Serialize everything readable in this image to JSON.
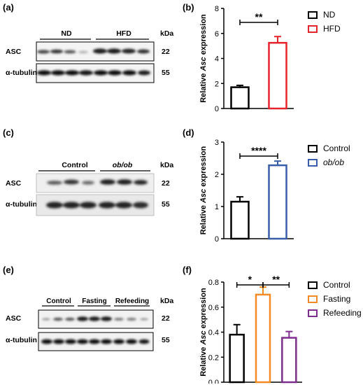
{
  "colors": {
    "nd": "#000000",
    "hfd": "#e5242b",
    "control": "#000000",
    "obob": "#3a5daa",
    "fasting": "#f08a24",
    "refeeding": "#7e2f8e"
  },
  "panels": {
    "a": {
      "letter": "(a)",
      "group_labels": [
        "ND",
        "HFD"
      ],
      "unit": "kDa",
      "rows": [
        {
          "label": "ASC",
          "kda": "22"
        },
        {
          "label": "α-tubulin",
          "kda": "55"
        }
      ]
    },
    "c": {
      "letter": "(c)",
      "group_labels": [
        "Control",
        "ob/ob"
      ],
      "unit": "kDa",
      "rows": [
        {
          "label": "ASC",
          "kda": "22"
        },
        {
          "label": "α-tubulin",
          "kda": "55"
        }
      ]
    },
    "e": {
      "letter": "(e)",
      "group_labels": [
        "Control",
        "Fasting",
        "Refeeding"
      ],
      "unit": "kDa",
      "rows": [
        {
          "label": "ASC",
          "kda": "22"
        },
        {
          "label": "α-tubulin",
          "kda": "55"
        }
      ]
    },
    "b": {
      "letter": "(b)"
    },
    "d": {
      "letter": "(d)"
    },
    "f": {
      "letter": "(f)"
    }
  },
  "chart_data": [
    {
      "type": "bar",
      "panel": "b",
      "categories": [
        "ND",
        "HFD"
      ],
      "values": [
        1.7,
        5.25
      ],
      "errors": [
        0.15,
        0.5
      ],
      "ylim": [
        0,
        8
      ],
      "yticks": [
        "0",
        "2",
        "4",
        "6",
        "8"
      ],
      "ylabel_prefix": "Relative ",
      "ylabel_gene": "Asc",
      "ylabel_suffix": " expression",
      "significance": [
        {
          "from": 0,
          "to": 1,
          "label": "**"
        }
      ],
      "legend": [
        "ND",
        "HFD"
      ]
    },
    {
      "type": "bar",
      "panel": "d",
      "categories": [
        "Control",
        "ob/ob"
      ],
      "values": [
        1.15,
        2.28
      ],
      "errors": [
        0.15,
        0.13
      ],
      "ylim": [
        0,
        3
      ],
      "yticks": [
        "0",
        "1",
        "2",
        "3"
      ],
      "ylabel_prefix": "Relative ",
      "ylabel_gene": "Asc",
      "ylabel_suffix": " expression",
      "significance": [
        {
          "from": 0,
          "to": 1,
          "label": "****"
        }
      ],
      "legend": [
        "Control",
        "ob/ob"
      ]
    },
    {
      "type": "bar",
      "panel": "f",
      "categories": [
        "Control",
        "Fasting",
        "Refeeding"
      ],
      "values": [
        0.38,
        0.7,
        0.355
      ],
      "errors": [
        0.08,
        0.06,
        0.05
      ],
      "ylim": [
        0,
        0.8
      ],
      "yticks": [
        "0.0",
        "0.2",
        "0.4",
        "0.6",
        "0.8"
      ],
      "ylabel_prefix": "Relative ",
      "ylabel_gene": "Asc",
      "ylabel_suffix": " expression",
      "significance": [
        {
          "from": 0,
          "to": 1,
          "label": "*"
        },
        {
          "from": 1,
          "to": 2,
          "label": "**"
        }
      ],
      "legend": [
        "Control",
        "Fasting",
        "Refeeding"
      ]
    }
  ]
}
